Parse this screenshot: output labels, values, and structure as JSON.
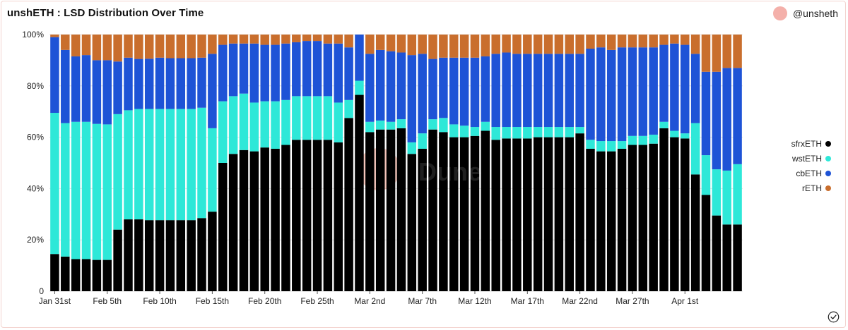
{
  "header": {
    "title": "unshETH : LSD Distribution Over Time",
    "author": "@unsheth"
  },
  "colors": {
    "sfrxETH": "#000000",
    "wstETH": "#2ee8d8",
    "cbETH": "#1e53d6",
    "rETH": "#c96e2d"
  },
  "icons": {
    "avatar": "avatar-circle",
    "check": "check-circle-icon"
  },
  "chart_data": {
    "type": "bar",
    "stacked": true,
    "normalized": true,
    "ylim": [
      0,
      100
    ],
    "yticks": [
      "0",
      "20%",
      "40%",
      "60%",
      "80%",
      "100%"
    ],
    "xticks": [
      "Jan 31st",
      "Feb 5th",
      "Feb 10th",
      "Feb 15th",
      "Feb 20th",
      "Feb 25th",
      "Mar 2nd",
      "Mar 7th",
      "Mar 12th",
      "Mar 17th",
      "Mar 22nd",
      "Mar 27th",
      "Apr 1st"
    ],
    "xtick_index": [
      0,
      5,
      10,
      15,
      20,
      25,
      30,
      35,
      40,
      45,
      50,
      55,
      60
    ],
    "categories": [
      "Jan 31st",
      "Feb 1st",
      "Feb 2nd",
      "Feb 3rd",
      "Feb 4th",
      "Feb 5th",
      "Feb 6th",
      "Feb 7th",
      "Feb 8th",
      "Feb 9th",
      "Feb 10th",
      "Feb 11th",
      "Feb 12th",
      "Feb 13th",
      "Feb 14th",
      "Feb 15th",
      "Feb 16th",
      "Feb 17th",
      "Feb 18th",
      "Feb 19th",
      "Feb 20th",
      "Feb 21st",
      "Feb 22nd",
      "Feb 23rd",
      "Feb 24th",
      "Feb 25th",
      "Feb 26th",
      "Feb 27th",
      "Feb 28th",
      "Mar 1st",
      "Mar 2nd",
      "Mar 3rd",
      "Mar 4th",
      "Mar 5th",
      "Mar 6th",
      "Mar 7th",
      "Mar 8th",
      "Mar 9th",
      "Mar 10th",
      "Mar 11th",
      "Mar 12th",
      "Mar 13th",
      "Mar 14th",
      "Mar 15th",
      "Mar 16th",
      "Mar 17th",
      "Mar 18th",
      "Mar 19th",
      "Mar 20th",
      "Mar 21st",
      "Mar 22nd",
      "Mar 23rd",
      "Mar 24th",
      "Mar 25th",
      "Mar 26th",
      "Mar 27th",
      "Mar 28th",
      "Mar 29th",
      "Mar 30th",
      "Mar 31st",
      "Apr 1st",
      "Apr 2nd",
      "Apr 3rd",
      "Apr 4th",
      "Apr 5th",
      "Apr 6th"
    ],
    "series": [
      {
        "name": "sfrxETH",
        "values": [
          14.5,
          13.5,
          12.5,
          12.5,
          12.2,
          12.2,
          24.0,
          28.0,
          28.0,
          27.7,
          27.7,
          27.7,
          27.7,
          27.7,
          28.5,
          31.0,
          50.0,
          53.5,
          55.0,
          54.5,
          56.0,
          55.5,
          57.0,
          59.0,
          59.0,
          59.0,
          59.0,
          58.0,
          67.5,
          76.5,
          62.0,
          63.0,
          63.0,
          63.5,
          53.5,
          55.5,
          63.0,
          62.0,
          60.0,
          60.0,
          60.5,
          62.5,
          59.0,
          59.5,
          59.5,
          59.5,
          60.0,
          60.0,
          60.0,
          60.0,
          61.5,
          55.5,
          54.5,
          54.5,
          55.5,
          57.0,
          57.0,
          57.5,
          63.5,
          60.0,
          59.5,
          45.5,
          37.5,
          29.5,
          26.0,
          26.0
        ]
      },
      {
        "name": "wstETH",
        "values": [
          55.0,
          52.0,
          53.5,
          53.5,
          53.0,
          52.8,
          45.0,
          42.5,
          43.0,
          43.3,
          43.3,
          43.3,
          43.3,
          43.3,
          43.0,
          32.5,
          24.0,
          22.5,
          22.0,
          19.0,
          18.0,
          18.5,
          17.5,
          17.0,
          17.0,
          17.0,
          17.0,
          15.5,
          7.0,
          5.5,
          4.0,
          3.5,
          3.0,
          3.5,
          4.5,
          6.0,
          4.0,
          5.5,
          5.0,
          4.5,
          3.5,
          3.5,
          5.0,
          4.5,
          4.5,
          4.5,
          4.0,
          4.0,
          4.0,
          4.0,
          2.5,
          3.5,
          4.0,
          4.0,
          3.0,
          3.5,
          3.5,
          3.5,
          2.5,
          2.5,
          2.0,
          20.0,
          15.5,
          18.0,
          21.0,
          23.5
        ]
      },
      {
        "name": "cbETH",
        "values": [
          29.5,
          28.5,
          25.5,
          26.0,
          24.8,
          25.0,
          20.5,
          20.5,
          19.5,
          19.6,
          20.0,
          19.8,
          19.8,
          19.8,
          19.5,
          29.0,
          22.0,
          20.5,
          19.5,
          23.0,
          22.0,
          22.0,
          22.0,
          21.0,
          21.5,
          21.5,
          20.5,
          23.0,
          20.5,
          18.0,
          26.5,
          27.5,
          27.5,
          26.0,
          34.0,
          31.0,
          23.5,
          23.5,
          26.0,
          26.5,
          27.0,
          25.5,
          28.5,
          29.0,
          28.5,
          28.5,
          28.5,
          28.5,
          28.5,
          28.5,
          28.5,
          35.5,
          36.5,
          35.5,
          36.5,
          34.5,
          34.5,
          34.0,
          30.0,
          34.0,
          34.5,
          27.0,
          32.5,
          38.0,
          40.0,
          37.5
        ]
      },
      {
        "name": "rETH",
        "values": [
          1.0,
          6.0,
          8.5,
          8.0,
          10.0,
          10.0,
          10.5,
          9.0,
          9.5,
          9.4,
          9.0,
          9.2,
          9.2,
          9.2,
          9.0,
          7.5,
          4.0,
          3.5,
          3.5,
          3.5,
          4.0,
          4.0,
          3.5,
          3.0,
          2.5,
          2.5,
          3.5,
          3.5,
          5.0,
          0.0,
          7.5,
          6.0,
          6.5,
          7.0,
          8.0,
          7.5,
          9.5,
          9.0,
          9.0,
          9.0,
          9.0,
          8.5,
          7.5,
          7.0,
          7.5,
          7.5,
          7.5,
          7.5,
          7.5,
          7.5,
          7.5,
          5.5,
          5.0,
          6.0,
          5.0,
          5.0,
          5.0,
          5.0,
          4.0,
          3.5,
          4.0,
          7.5,
          14.5,
          14.5,
          13.0,
          13.0
        ]
      }
    ],
    "legend": {
      "position": "right",
      "labels": [
        "sfrxETH",
        "wstETH",
        "cbETH",
        "rETH"
      ]
    },
    "watermark": "Dune"
  }
}
